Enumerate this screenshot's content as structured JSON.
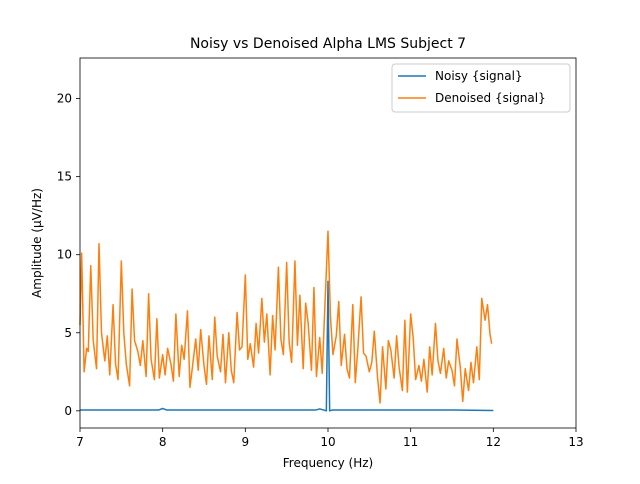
{
  "chart_data": {
    "type": "line",
    "title": "Noisy vs Denoised Alpha LMS Subject 7",
    "xlabel": "Frequency (Hz)",
    "ylabel": "Amplitude (μV/Hz)",
    "xlim": [
      7,
      13
    ],
    "ylim": [
      -1.1,
      22.6
    ],
    "xticks": [
      7,
      8,
      9,
      10,
      11,
      12,
      13
    ],
    "yticks": [
      0,
      5,
      10,
      15,
      20
    ],
    "grid": false,
    "legend_position": "top-right",
    "series": [
      {
        "name": "Noisy {signal}",
        "color": "#1f77b4",
        "x": [
          7.0,
          7.5,
          7.95,
          8.0,
          8.05,
          8.5,
          9.0,
          9.5,
          9.85,
          9.9,
          9.95,
          9.98,
          10.0,
          10.02,
          10.05,
          10.5,
          11.0,
          11.5,
          12.0
        ],
        "y": [
          0.05,
          0.05,
          0.05,
          0.15,
          0.05,
          0.05,
          0.05,
          0.05,
          0.05,
          0.12,
          0.05,
          0.0,
          8.3,
          0.0,
          0.05,
          0.05,
          0.05,
          0.05,
          0.02
        ]
      },
      {
        "name": "Denoised {signal}",
        "color": "#ff7f0e",
        "x": [
          7.0,
          7.02,
          7.05,
          7.08,
          7.1,
          7.13,
          7.16,
          7.2,
          7.23,
          7.26,
          7.3,
          7.33,
          7.36,
          7.4,
          7.43,
          7.46,
          7.5,
          7.53,
          7.56,
          7.6,
          7.63,
          7.66,
          7.7,
          7.73,
          7.76,
          7.8,
          7.83,
          7.86,
          7.9,
          7.93,
          7.96,
          8.0,
          8.03,
          8.06,
          8.1,
          8.13,
          8.16,
          8.2,
          8.23,
          8.26,
          8.3,
          8.33,
          8.36,
          8.4,
          8.43,
          8.46,
          8.5,
          8.53,
          8.56,
          8.6,
          8.63,
          8.66,
          8.7,
          8.73,
          8.76,
          8.8,
          8.83,
          8.86,
          8.9,
          8.93,
          8.96,
          9.0,
          9.03,
          9.06,
          9.1,
          9.13,
          9.16,
          9.2,
          9.23,
          9.26,
          9.3,
          9.33,
          9.36,
          9.4,
          9.43,
          9.46,
          9.5,
          9.53,
          9.56,
          9.6,
          9.63,
          9.66,
          9.7,
          9.73,
          9.76,
          9.8,
          9.83,
          9.86,
          9.9,
          9.93,
          9.96,
          10.0,
          10.03,
          10.06,
          10.1,
          10.13,
          10.16,
          10.2,
          10.23,
          10.26,
          10.3,
          10.33,
          10.36,
          10.4,
          10.43,
          10.46,
          10.5,
          10.53,
          10.56,
          10.6,
          10.63,
          10.66,
          10.7,
          10.73,
          10.76,
          10.8,
          10.83,
          10.86,
          10.9,
          10.93,
          10.96,
          11.0,
          11.03,
          11.06,
          11.1,
          11.13,
          11.16,
          11.2,
          11.23,
          11.26,
          11.3,
          11.33,
          11.36,
          11.4,
          11.43,
          11.46,
          11.5,
          11.53,
          11.56,
          11.6,
          11.63,
          11.66,
          11.7,
          11.73,
          11.76,
          11.8,
          11.83,
          11.86,
          11.9,
          11.93,
          11.96,
          11.98
        ],
        "y": [
          5.5,
          10.1,
          2.5,
          4.0,
          3.8,
          9.3,
          4.5,
          2.7,
          10.7,
          5.0,
          3.2,
          4.8,
          2.3,
          6.8,
          3.0,
          2.0,
          9.6,
          5.0,
          3.0,
          1.6,
          7.8,
          4.5,
          3.8,
          2.9,
          4.5,
          2.2,
          7.5,
          3.3,
          2.0,
          5.9,
          2.1,
          3.6,
          2.3,
          4.0,
          3.0,
          1.9,
          6.2,
          2.2,
          4.2,
          3.3,
          6.4,
          1.5,
          2.8,
          4.6,
          2.6,
          5.2,
          2.9,
          1.7,
          4.8,
          2.0,
          6.0,
          3.5,
          2.5,
          4.9,
          1.8,
          5.0,
          2.6,
          1.8,
          6.3,
          3.9,
          4.1,
          8.7,
          3.3,
          4.3,
          2.8,
          5.6,
          3.7,
          7.2,
          4.4,
          6.2,
          2.3,
          6.1,
          3.9,
          9.2,
          4.6,
          3.6,
          9.5,
          4.4,
          3.1,
          9.6,
          4.2,
          7.4,
          2.7,
          6.9,
          5.6,
          2.6,
          7.9,
          2.2,
          4.7,
          2.4,
          6.4,
          11.5,
          6.0,
          3.6,
          4.8,
          7.0,
          2.9,
          4.9,
          2.7,
          2.1,
          6.8,
          1.8,
          3.9,
          7.3,
          3.7,
          3.5,
          2.5,
          3.1,
          5.1,
          2.1,
          0.5,
          4.1,
          1.4,
          4.5,
          3.9,
          2.1,
          4.8,
          2.8,
          1.3,
          5.8,
          1.2,
          6.2,
          4.7,
          2.0,
          2.9,
          1.9,
          3.3,
          1.2,
          4.1,
          2.3,
          5.6,
          3.2,
          2.4,
          4.0,
          2.1,
          3.2,
          2.6,
          1.6,
          4.6,
          2.8,
          0.6,
          2.7,
          1.3,
          3.1,
          1.8,
          4.1,
          2.0,
          7.2,
          5.8,
          6.8,
          4.9,
          4.3
        ]
      }
    ]
  }
}
